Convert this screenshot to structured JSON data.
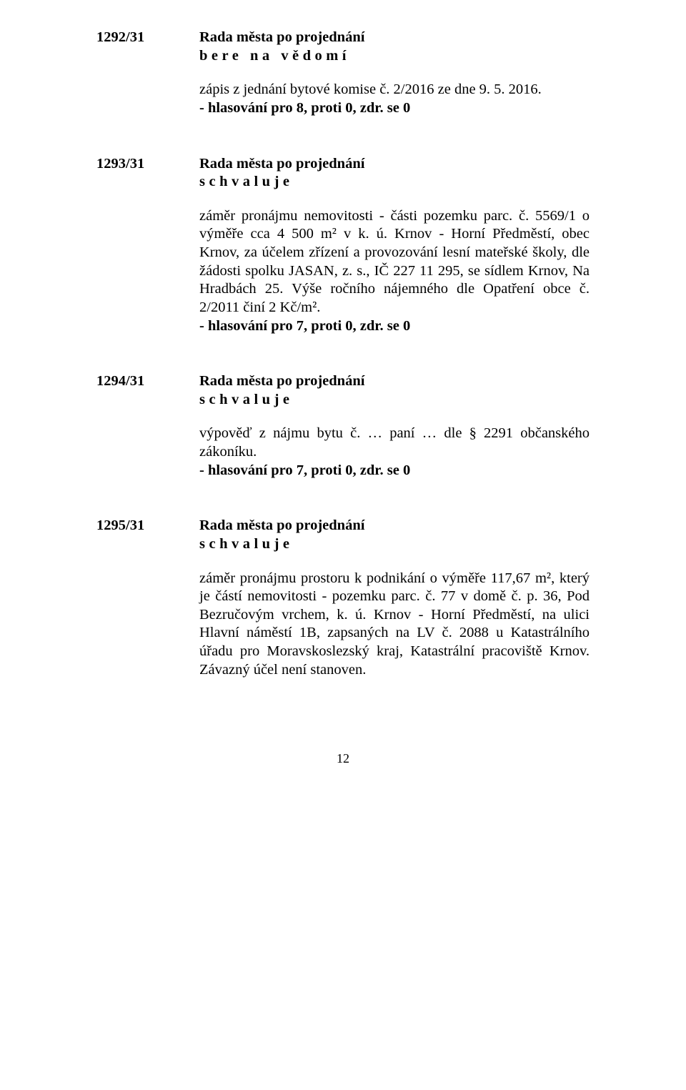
{
  "items": [
    {
      "number": "1292/31",
      "title_line1": "Rada města po projednání",
      "title_line2": "bere na vědomí",
      "body": "zápis z jednání bytové komise č. 2/2016 ze dne 9. 5. 2016.",
      "vote": "- hlasování pro 8, proti 0, zdr. se 0"
    },
    {
      "number": "1293/31",
      "title_line1": "Rada města po projednání",
      "title_line2": "schvaluje",
      "body": "záměr pronájmu nemovitosti - části pozemku parc. č. 5569/1 o výměře cca 4 500 m² v k. ú. Krnov - Horní Předměstí, obec Krnov, za účelem zřízení a provozování lesní mateřské školy, dle žádosti spolku JASAN, z. s., IČ 227 11 295, se sídlem Krnov, Na Hradbách 25. Výše ročního nájemného dle Opatření obce č. 2/2011 činí 2 Kč/m².",
      "vote": "- hlasování pro 7, proti 0, zdr. se 0"
    },
    {
      "number": "1294/31",
      "title_line1": "Rada města po projednání",
      "title_line2": "schvaluje",
      "body": "výpověď z nájmu bytu č. … paní … dle § 2291 občanského zákoníku.",
      "vote": "- hlasování pro 7, proti 0, zdr. se 0"
    },
    {
      "number": "1295/31",
      "title_line1": "Rada města po projednání",
      "title_line2": "schvaluje",
      "body": "záměr pronájmu prostoru k podnikání o výměře 117,67 m², který je částí nemovitosti - pozemku parc. č. 77 v domě č. p. 36, Pod Bezručovým vrchem, k. ú. Krnov - Horní Předměstí, na ulici Hlavní náměstí 1B, zapsaných na LV č. 2088 u Katastrálního úřadu pro Moravskoslezský kraj, Katastrální pracoviště Krnov. Závazný účel není stanoven.",
      "vote": ""
    }
  ],
  "page_number": "12"
}
